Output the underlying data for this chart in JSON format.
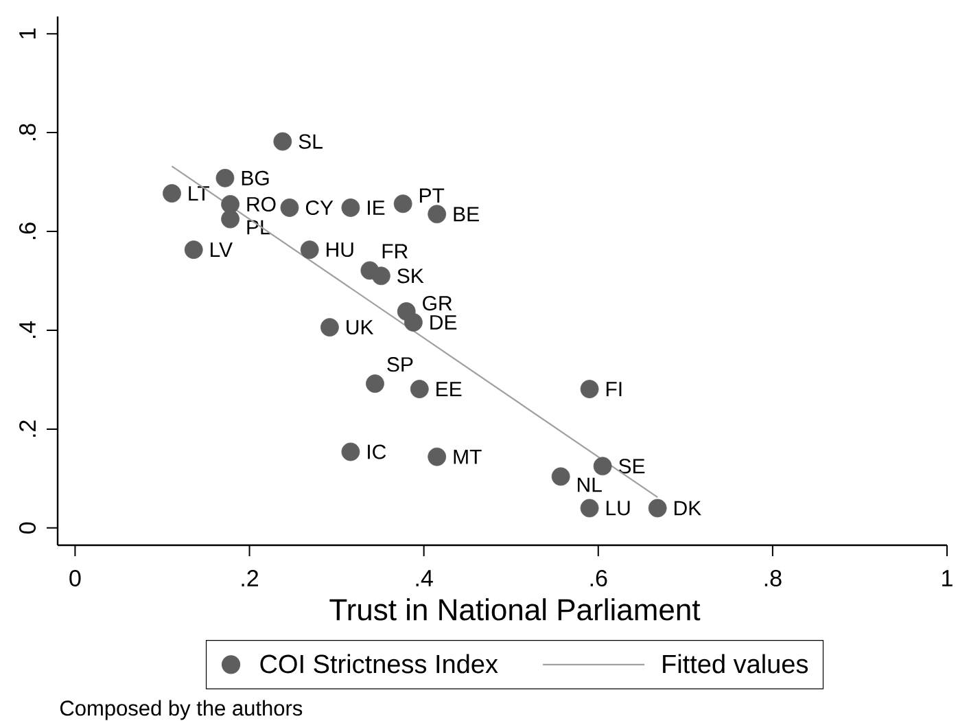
{
  "chart_data": {
    "type": "scatter",
    "xlabel": "Trust in National Parliament",
    "annotations": [
      "Composed by the authors"
    ],
    "series": [
      {
        "name": "COI Strictness Index",
        "color": "#5e5e5e",
        "marker": "circle",
        "x": [
          0.111,
          0.136,
          0.172,
          0.178,
          0.178,
          0.238,
          0.246,
          0.269,
          0.292,
          0.316,
          0.316,
          0.338,
          0.344,
          0.351,
          0.376,
          0.38,
          0.388,
          0.395,
          0.415,
          0.415,
          0.557,
          0.59,
          0.59,
          0.605,
          0.668
        ],
        "values": [
          0.677,
          0.563,
          0.708,
          0.655,
          0.625,
          0.782,
          0.648,
          0.563,
          0.406,
          0.648,
          0.154,
          0.521,
          0.292,
          0.51,
          0.656,
          0.438,
          0.416,
          0.281,
          0.635,
          0.144,
          0.104,
          0.281,
          0.04,
          0.125,
          0.04
        ],
        "value_labels": [
          "LT",
          "LV",
          "BG",
          "RO",
          "PL",
          "SL",
          "CY",
          "HU",
          "UK",
          "IE",
          "IC",
          "FR",
          "SP",
          "SK",
          "PT",
          "GR",
          "DE",
          "EE",
          "BE",
          "MT",
          "NL",
          "FI",
          "LU",
          "SE",
          "DK"
        ]
      },
      {
        "name": "Fitted values",
        "type": "line",
        "color": "#a0a0a0",
        "x": [
          0.111,
          0.668
        ],
        "values": [
          0.732,
          0.062
        ]
      }
    ],
    "xlim": [
      -0.02,
      1.0
    ],
    "ylim": [
      -0.035,
      1.035
    ],
    "xticks": [
      0,
      {
        "value": 0.2,
        "label": ".2"
      },
      {
        "value": 0.4,
        "label": ".4"
      },
      {
        "value": 0.6,
        "label": ".6"
      },
      {
        "value": 0.8,
        "label": ".8"
      },
      1
    ],
    "yticks": [
      0,
      {
        "value": 0.2,
        "label": ".2"
      },
      {
        "value": 0.4,
        "label": ".4"
      },
      {
        "value": 0.6,
        "label": ".6"
      },
      {
        "value": 0.8,
        "label": ".8"
      },
      1
    ],
    "legend": "bottom"
  }
}
